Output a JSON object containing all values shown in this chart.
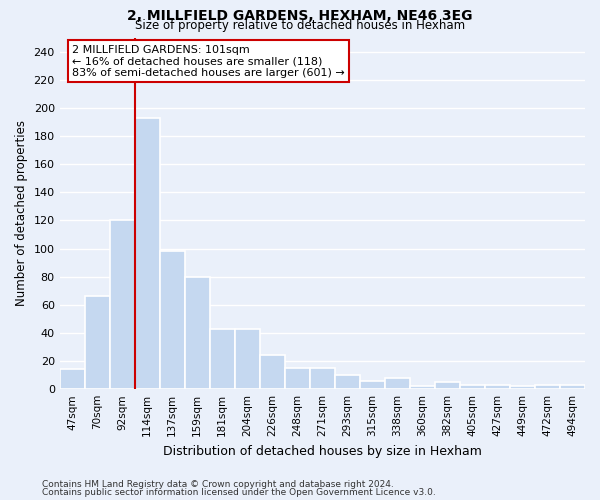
{
  "title1": "2, MILLFIELD GARDENS, HEXHAM, NE46 3EG",
  "title2": "Size of property relative to detached houses in Hexham",
  "xlabel": "Distribution of detached houses by size in Hexham",
  "ylabel": "Number of detached properties",
  "bar_labels": [
    "47sqm",
    "70sqm",
    "92sqm",
    "114sqm",
    "137sqm",
    "159sqm",
    "181sqm",
    "204sqm",
    "226sqm",
    "248sqm",
    "271sqm",
    "293sqm",
    "315sqm",
    "338sqm",
    "360sqm",
    "382sqm",
    "405sqm",
    "427sqm",
    "449sqm",
    "472sqm",
    "494sqm"
  ],
  "bar_values": [
    14,
    66,
    120,
    193,
    98,
    80,
    43,
    43,
    24,
    15,
    15,
    10,
    6,
    8,
    2,
    5,
    3,
    3,
    2,
    3,
    3
  ],
  "bar_color": "#c5d8f0",
  "bar_edge_color": "#ffffff",
  "bg_color": "#eaf0fa",
  "grid_color": "#ffffff",
  "red_line_x": 2.5,
  "annotation_text": "2 MILLFIELD GARDENS: 101sqm\n← 16% of detached houses are smaller (118)\n83% of semi-detached houses are larger (601) →",
  "annotation_box_color": "#ffffff",
  "annotation_box_edge": "#cc0000",
  "footer1": "Contains HM Land Registry data © Crown copyright and database right 2024.",
  "footer2": "Contains public sector information licensed under the Open Government Licence v3.0.",
  "ylim": [
    0,
    250
  ],
  "yticks": [
    0,
    20,
    40,
    60,
    80,
    100,
    120,
    140,
    160,
    180,
    200,
    220,
    240
  ]
}
